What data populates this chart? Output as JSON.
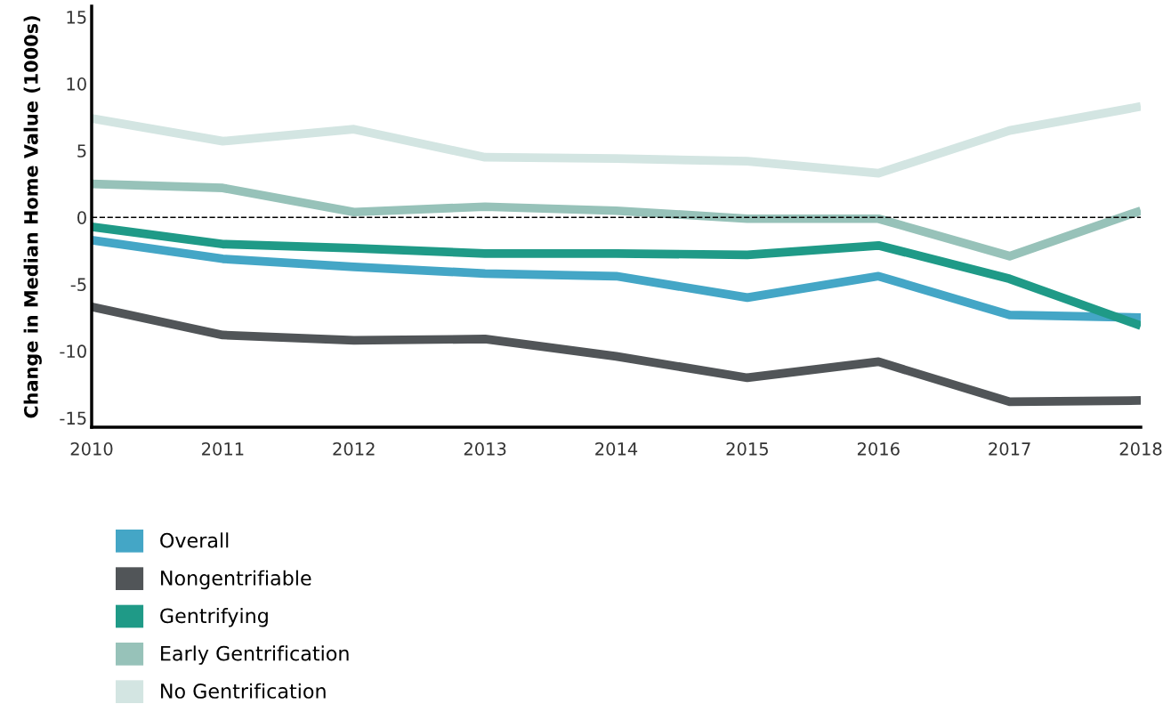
{
  "chart_data": {
    "type": "line",
    "ylabel": "Change in Median Home Value (1000s)",
    "x": [
      2010,
      2011,
      2012,
      2013,
      2014,
      2015,
      2016,
      2017,
      2018
    ],
    "xlim": [
      2010,
      2018
    ],
    "xticks": [
      2010,
      2011,
      2012,
      2013,
      2014,
      2015,
      2016,
      2017,
      2018
    ],
    "ylim": [
      -15.7,
      15.8
    ],
    "yticks": [
      -15,
      -10,
      -5,
      0,
      5,
      10,
      15
    ],
    "grid": false,
    "legend": "bottom",
    "marker": "none",
    "line_style": "solid",
    "ref_lines": [
      {
        "axis": "y",
        "value": 0,
        "color": "#000000",
        "line_style": "dashed"
      }
    ],
    "series": [
      {
        "name": "Overall",
        "color": "#44a6c6",
        "values": [
          -1.7,
          -3.1,
          -3.7,
          -4.2,
          -4.4,
          -6.0,
          -4.4,
          -7.3,
          -7.5
        ]
      },
      {
        "name": "Nongentrifiable",
        "color": "#515558",
        "values": [
          -6.7,
          -8.8,
          -9.2,
          -9.1,
          -10.4,
          -12.0,
          -10.8,
          -13.8,
          -13.7
        ]
      },
      {
        "name": "Gentrifying",
        "color": "#1f9a87",
        "values": [
          -0.7,
          -2.0,
          -2.3,
          -2.7,
          -2.7,
          -2.8,
          -2.1,
          -4.6,
          -8.1
        ]
      },
      {
        "name": "Early Gentrification",
        "color": "#97c2b9",
        "values": [
          2.5,
          2.2,
          0.4,
          0.8,
          0.5,
          -0.1,
          -0.1,
          -2.9,
          0.5
        ]
      },
      {
        "name": "No Gentrification",
        "color": "#d3e5e2",
        "values": [
          7.4,
          5.7,
          6.6,
          4.5,
          4.4,
          4.2,
          3.3,
          6.5,
          8.3
        ]
      }
    ]
  }
}
